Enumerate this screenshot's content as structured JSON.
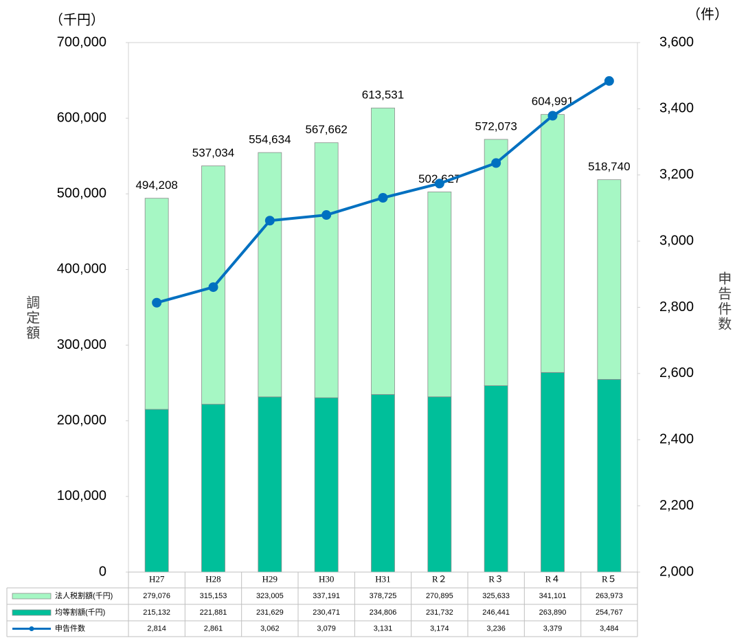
{
  "chart_data": {
    "type": "bar",
    "y_unit_label": "（千円）",
    "y2_unit_label": "（件）",
    "ylabel": "調定額",
    "y2label": "申告件数",
    "categories": [
      "H27",
      "H28",
      "H29",
      "H30",
      "H31",
      "R２",
      "R３",
      "R４",
      "R５"
    ],
    "series": [
      {
        "name": "法人税割額(千円)",
        "type": "bar",
        "color": "#a6f7c4",
        "values": [
          279076,
          315153,
          323005,
          337191,
          378725,
          270895,
          325633,
          341101,
          263973
        ],
        "value_labels": [
          "279,076",
          "315,153",
          "323,005",
          "337,191",
          "378,725",
          "270,895",
          "325,633",
          "341,101",
          "263,973"
        ]
      },
      {
        "name": "均等割額(千円)",
        "type": "bar",
        "color": "#00bf9a",
        "values": [
          215132,
          221881,
          231629,
          230471,
          234806,
          231732,
          246441,
          263890,
          254767
        ],
        "value_labels": [
          "215,132",
          "221,881",
          "231,629",
          "230,471",
          "234,806",
          "231,732",
          "246,441",
          "263,890",
          "254,767"
        ]
      },
      {
        "name": "申告件数",
        "type": "line",
        "axis": "y2",
        "color": "#0070c0",
        "values": [
          2814,
          2861,
          3062,
          3079,
          3131,
          3174,
          3236,
          3379,
          3484
        ],
        "value_labels": [
          "2,814",
          "2,861",
          "3,062",
          "3,079",
          "3,131",
          "3,174",
          "3,236",
          "3,379",
          "3,484"
        ]
      }
    ],
    "total_values": [
      494208,
      537034,
      554634,
      567662,
      613531,
      502627,
      572073,
      604991,
      518740
    ],
    "total_labels": [
      "494,208",
      "537,034",
      "554,634",
      "567,662",
      "613,531",
      "502,627",
      "572,073",
      "604,991",
      "518,740"
    ],
    "ylim": [
      0,
      700000
    ],
    "yticks": [
      0,
      {
        "value": 100000,
        "label": "100,000"
      },
      {
        "value": 200000,
        "label": "200,000"
      },
      {
        "value": 300000,
        "label": "300,000"
      },
      {
        "value": 400000,
        "label": "400,000"
      },
      {
        "value": 500000,
        "label": "500,000"
      },
      {
        "value": 600000,
        "label": "600,000"
      },
      {
        "value": 700000,
        "label": "700,000"
      }
    ],
    "y2lim": [
      2000,
      3600
    ],
    "y2ticks": [
      {
        "value": 2000,
        "label": "2,000"
      },
      {
        "value": 2200,
        "label": "2,200"
      },
      {
        "value": 2400,
        "label": "2,400"
      },
      {
        "value": 2600,
        "label": "2,600"
      },
      {
        "value": 2800,
        "label": "2,800"
      },
      {
        "value": 3000,
        "label": "3,000"
      },
      {
        "value": 3200,
        "label": "3,200"
      },
      {
        "value": 3400,
        "label": "3,400"
      },
      {
        "value": 3600,
        "label": "3,600"
      }
    ]
  }
}
